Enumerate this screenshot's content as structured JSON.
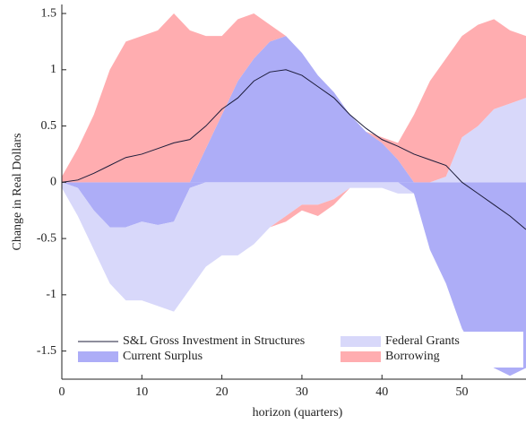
{
  "chart_data": {
    "type": "area",
    "x_label": "horizon (quarters)",
    "y_label": "Change in Real Dollars",
    "x": [
      0,
      2,
      4,
      6,
      8,
      10,
      12,
      14,
      16,
      18,
      20,
      22,
      24,
      26,
      28,
      30,
      32,
      34,
      36,
      38,
      40,
      42,
      44,
      46,
      48,
      50,
      52,
      54,
      56,
      58
    ],
    "series": [
      {
        "name": "S&L Gross Investment in Structures",
        "type": "line",
        "color": "#1c1c3a",
        "values": [
          0,
          0.02,
          0.08,
          0.15,
          0.22,
          0.25,
          0.3,
          0.35,
          0.38,
          0.5,
          0.65,
          0.75,
          0.9,
          0.98,
          1.0,
          0.95,
          0.85,
          0.75,
          0.6,
          0.48,
          0.38,
          0.32,
          0.25,
          0.2,
          0.15,
          0.0,
          -0.1,
          -0.2,
          -0.3,
          -0.42
        ]
      },
      {
        "name": "Current Surplus",
        "type": "area",
        "color": "#adadf7",
        "values": [
          0,
          -0.05,
          -0.25,
          -0.4,
          -0.4,
          -0.35,
          -0.38,
          -0.35,
          -0.05,
          0.3,
          0.6,
          0.9,
          1.1,
          1.25,
          1.3,
          1.15,
          0.95,
          0.8,
          0.6,
          0.45,
          0.35,
          0.2,
          -0.1,
          -0.6,
          -0.9,
          -1.3,
          -1.55,
          -1.65,
          -1.72,
          -1.65
        ]
      },
      {
        "name": "Federal Grants",
        "type": "area",
        "color": "#d8d8fa",
        "values": [
          -0.05,
          -0.25,
          -0.35,
          -0.5,
          -0.65,
          -0.7,
          -0.72,
          -0.8,
          -0.9,
          -0.75,
          -0.65,
          -0.65,
          -0.55,
          -0.4,
          -0.3,
          -0.2,
          -0.2,
          -0.15,
          -0.05,
          -0.05,
          -0.05,
          -0.1,
          0,
          0,
          0.05,
          0.4,
          0.5,
          0.65,
          0.7,
          0.75
        ]
      },
      {
        "name": "Borrowing",
        "type": "area",
        "color": "#ffadb0",
        "values": [
          0.05,
          0.3,
          0.6,
          1.0,
          1.25,
          1.3,
          1.35,
          1.5,
          1.35,
          1.0,
          0.7,
          0.55,
          0.4,
          0.15,
          -0.05,
          -0.05,
          -0.1,
          -0.05,
          0,
          0,
          0.05,
          0.15,
          0.6,
          0.9,
          1.05,
          0.9,
          0.9,
          0.8,
          0.65,
          0.55
        ]
      }
    ],
    "xlim": [
      0,
      58
    ],
    "xticks": [
      0,
      10,
      20,
      30,
      40,
      50
    ],
    "ylim": [
      -1.75,
      1.58
    ],
    "yticks": [
      -1.5,
      -1,
      -0.5,
      0,
      0.5,
      1,
      1.5
    ]
  }
}
